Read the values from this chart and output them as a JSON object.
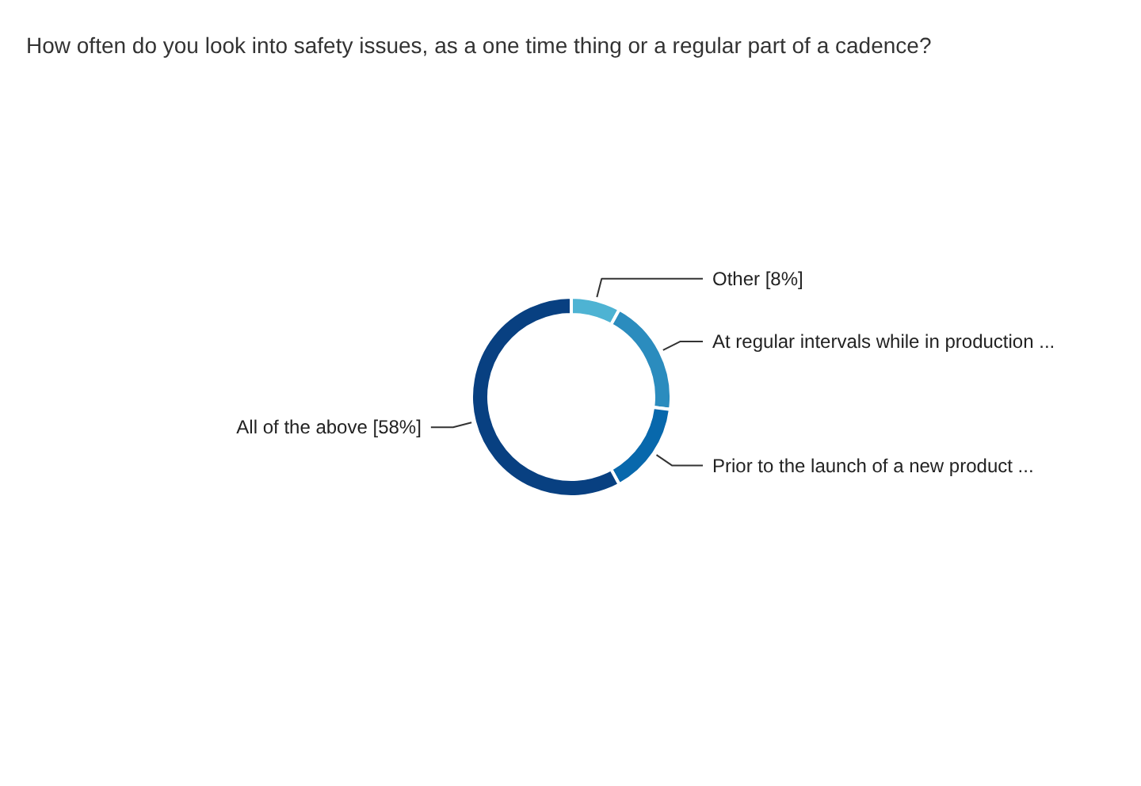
{
  "chart_data": {
    "type": "donut",
    "title": "How often do you look into safety issues, as a one time thing or a regular part of a cadence?",
    "categories": [
      "Other",
      "At regular intervals while in production ...",
      "Prior to the launch of a new product ...",
      "All of the above"
    ],
    "values": [
      8,
      19,
      15,
      58
    ],
    "value_labels": [
      "[8%]",
      null,
      null,
      "[58%]"
    ],
    "colors": [
      "#4eb3d3",
      "#2b8cbe",
      "#0868ac",
      "#084081"
    ],
    "legend": false
  }
}
